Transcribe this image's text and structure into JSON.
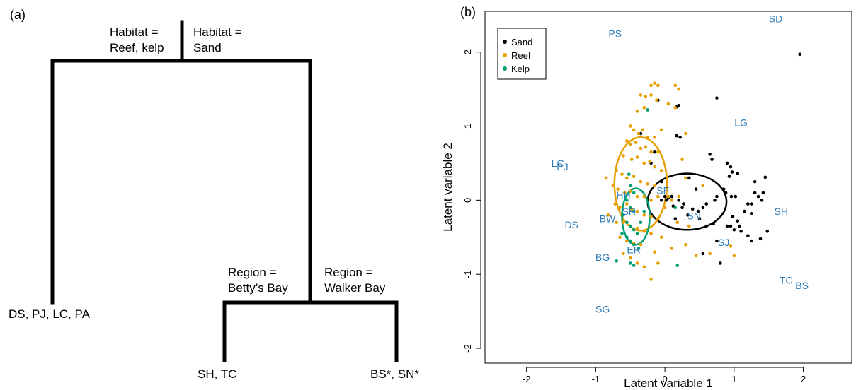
{
  "panel_a": {
    "label": "(a)",
    "split_habitat_left": [
      "Habitat =",
      "Reef, kelp"
    ],
    "split_habitat_right": [
      "Habitat =",
      "Sand"
    ],
    "split_region_left": [
      "Region =",
      "Betty’s Bay"
    ],
    "split_region_right": [
      "Region =",
      "Walker Bay"
    ],
    "leaf_far_left": "DS, PJ, LC, PA",
    "leaf_bettys": "SH, TC",
    "leaf_walker": "BS*, SN*"
  },
  "panel_b": {
    "label": "(b)",
    "colors": {
      "Sand": "#000000",
      "Reef": "#e69f00",
      "Kelp": "#009e73",
      "site_label": "#2b7bba"
    },
    "chart_data": {
      "type": "scatter",
      "xlabel": "Latent variable 1",
      "ylabel": "Latent variable 2",
      "xlim": [
        -2.6,
        2.7
      ],
      "ylim": [
        -2.2,
        2.55
      ],
      "xticks": [
        -2,
        -1,
        0,
        1,
        2
      ],
      "yticks": [
        -2,
        -1,
        0,
        1,
        2
      ],
      "xtick_labels": [
        "-2",
        "-1",
        "0",
        "1",
        "2"
      ],
      "ytick_labels": [
        "-2",
        "-1",
        "0",
        "1",
        "2"
      ],
      "grid": false,
      "legend": {
        "placement": "top-left",
        "entries": [
          "Sand",
          "Reef",
          "Kelp"
        ]
      },
      "site_labels": [
        {
          "text": "SD",
          "x": 1.6,
          "y": 2.45
        },
        {
          "text": "PS",
          "x": -0.72,
          "y": 2.25
        },
        {
          "text": "LG",
          "x": 1.1,
          "y": 1.05
        },
        {
          "text": "LC",
          "x": -1.55,
          "y": 0.5
        },
        {
          "text": "PJ",
          "x": -1.48,
          "y": 0.45
        },
        {
          "text": "HH",
          "x": -0.6,
          "y": 0.07
        },
        {
          "text": "SF",
          "x": -0.03,
          "y": 0.13
        },
        {
          "text": "SR",
          "x": -0.52,
          "y": -0.15
        },
        {
          "text": "SN",
          "x": 0.42,
          "y": -0.21
        },
        {
          "text": "SH",
          "x": 1.68,
          "y": -0.15
        },
        {
          "text": "BW",
          "x": -0.83,
          "y": -0.25
        },
        {
          "text": "DS",
          "x": -1.35,
          "y": -0.33
        },
        {
          "text": "SJ",
          "x": 0.85,
          "y": -0.57
        },
        {
          "text": "ER",
          "x": -0.45,
          "y": -0.67
        },
        {
          "text": "BG",
          "x": -0.9,
          "y": -0.77
        },
        {
          "text": "TC",
          "x": 1.75,
          "y": -1.08
        },
        {
          "text": "BS",
          "x": 1.98,
          "y": -1.15
        },
        {
          "text": "SG",
          "x": -0.9,
          "y": -1.47
        }
      ],
      "ellipses": [
        {
          "series": "Sand",
          "cx": 0.32,
          "cy": -0.02,
          "rx": 0.57,
          "ry": 0.38
        },
        {
          "series": "Reef",
          "cx": -0.35,
          "cy": 0.22,
          "rx": 0.38,
          "ry": 0.63
        },
        {
          "series": "Kelp",
          "cx": -0.42,
          "cy": -0.22,
          "rx": 0.2,
          "ry": 0.38
        }
      ],
      "series": [
        {
          "name": "Sand",
          "points": [
            [
              1.95,
              1.97
            ],
            [
              0.2,
              1.28
            ],
            [
              0.17,
              1.26
            ],
            [
              0.75,
              1.38
            ],
            [
              -0.1,
              1.35
            ],
            [
              0.22,
              0.85
            ],
            [
              0.17,
              0.87
            ],
            [
              0.65,
              0.62
            ],
            [
              0.68,
              0.55
            ],
            [
              0.9,
              0.5
            ],
            [
              0.95,
              0.45
            ],
            [
              0.93,
              0.32
            ],
            [
              0.97,
              0.38
            ],
            [
              1.05,
              0.36
            ],
            [
              1.45,
              0.31
            ],
            [
              1.3,
              0.1
            ],
            [
              1.35,
              0.05
            ],
            [
              1.4,
              0.0
            ],
            [
              1.25,
              -0.05
            ],
            [
              1.2,
              -0.05
            ],
            [
              1.48,
              -0.42
            ],
            [
              1.38,
              -0.52
            ],
            [
              1.25,
              -0.55
            ],
            [
              1.2,
              -0.48
            ],
            [
              1.1,
              -0.42
            ],
            [
              1.08,
              -0.35
            ],
            [
              1.0,
              -0.4
            ],
            [
              0.95,
              -0.35
            ],
            [
              0.9,
              -0.35
            ],
            [
              1.05,
              -0.28
            ],
            [
              0.98,
              -0.22
            ],
            [
              1.02,
              0.05
            ],
            [
              0.96,
              0.05
            ],
            [
              0.88,
              0.1
            ],
            [
              0.85,
              0.15
            ],
            [
              0.75,
              0.05
            ],
            [
              0.72,
              0.0
            ],
            [
              0.6,
              -0.05
            ],
            [
              0.55,
              -0.1
            ],
            [
              0.48,
              -0.15
            ],
            [
              0.4,
              -0.12
            ],
            [
              0.33,
              -0.2
            ],
            [
              0.27,
              -0.05
            ],
            [
              0.2,
              0.0
            ],
            [
              0.1,
              0.05
            ],
            [
              0.05,
              0.03
            ],
            [
              0.0,
              0.05
            ],
            [
              0.02,
              0.0
            ],
            [
              -0.05,
              0.0
            ],
            [
              0.12,
              -0.08
            ],
            [
              0.35,
              0.3
            ],
            [
              0.45,
              0.15
            ],
            [
              0.5,
              -0.25
            ],
            [
              0.6,
              -0.35
            ],
            [
              0.7,
              -0.32
            ],
            [
              0.75,
              -0.55
            ],
            [
              0.55,
              -0.72
            ],
            [
              0.8,
              -0.85
            ],
            [
              1.15,
              -0.15
            ],
            [
              1.25,
              -0.18
            ],
            [
              1.3,
              0.25
            ],
            [
              1.42,
              0.1
            ],
            [
              -0.2,
              0.5
            ],
            [
              -0.15,
              0.65
            ],
            [
              -0.35,
              0.9
            ],
            [
              -0.05,
              0.25
            ],
            [
              0.15,
              -0.25
            ],
            [
              0.25,
              -0.1
            ]
          ]
        },
        {
          "name": "Reef",
          "points": [
            [
              -0.2,
              1.55
            ],
            [
              -0.15,
              1.58
            ],
            [
              -0.1,
              1.55
            ],
            [
              0.15,
              1.55
            ],
            [
              0.2,
              1.5
            ],
            [
              -0.35,
              1.42
            ],
            [
              -0.28,
              1.4
            ],
            [
              -0.2,
              1.42
            ],
            [
              -0.12,
              1.35
            ],
            [
              0.05,
              1.3
            ],
            [
              0.15,
              1.25
            ],
            [
              -0.4,
              1.2
            ],
            [
              -0.3,
              1.25
            ],
            [
              -0.25,
              1.22
            ],
            [
              -0.5,
              1.0
            ],
            [
              -0.45,
              0.95
            ],
            [
              -0.38,
              0.9
            ],
            [
              -0.32,
              0.95
            ],
            [
              -0.25,
              0.85
            ],
            [
              -0.15,
              0.85
            ],
            [
              -0.05,
              0.95
            ],
            [
              0.3,
              0.9
            ],
            [
              -0.55,
              0.8
            ],
            [
              -0.5,
              0.75
            ],
            [
              -0.42,
              0.78
            ],
            [
              -0.35,
              0.7
            ],
            [
              -0.28,
              0.72
            ],
            [
              -0.2,
              0.65
            ],
            [
              -0.1,
              0.65
            ],
            [
              -0.6,
              0.6
            ],
            [
              -0.48,
              0.55
            ],
            [
              -0.4,
              0.58
            ],
            [
              -0.3,
              0.5
            ],
            [
              -0.22,
              0.52
            ],
            [
              -0.15,
              0.45
            ],
            [
              -0.05,
              0.4
            ],
            [
              -0.7,
              0.4
            ],
            [
              -0.62,
              0.35
            ],
            [
              -0.55,
              0.3
            ],
            [
              -0.45,
              0.32
            ],
            [
              -0.35,
              0.25
            ],
            [
              -0.25,
              0.22
            ],
            [
              -0.15,
              0.2
            ],
            [
              -0.75,
              0.2
            ],
            [
              -0.68,
              0.15
            ],
            [
              -0.58,
              0.1
            ],
            [
              -0.5,
              0.12
            ],
            [
              -0.4,
              0.05
            ],
            [
              -0.3,
              0.05
            ],
            [
              -0.2,
              0.0
            ],
            [
              -0.1,
              0.05
            ],
            [
              0.05,
              0.05
            ],
            [
              0.1,
              0.0
            ],
            [
              -0.72,
              -0.05
            ],
            [
              -0.65,
              -0.1
            ],
            [
              -0.55,
              -0.05
            ],
            [
              -0.48,
              -0.12
            ],
            [
              -0.4,
              -0.15
            ],
            [
              -0.3,
              -0.2
            ],
            [
              -0.2,
              -0.22
            ],
            [
              -0.1,
              -0.25
            ],
            [
              -0.7,
              -0.3
            ],
            [
              -0.6,
              -0.3
            ],
            [
              -0.5,
              -0.35
            ],
            [
              -0.4,
              -0.38
            ],
            [
              -0.3,
              -0.42
            ],
            [
              -0.2,
              -0.45
            ],
            [
              -0.65,
              -0.5
            ],
            [
              -0.55,
              -0.55
            ],
            [
              -0.45,
              -0.58
            ],
            [
              -0.35,
              -0.6
            ],
            [
              -0.6,
              -0.72
            ],
            [
              -0.5,
              -0.78
            ],
            [
              -0.4,
              -0.85
            ],
            [
              -0.3,
              -0.9
            ],
            [
              -0.2,
              -1.07
            ],
            [
              -0.1,
              -0.85
            ],
            [
              0.25,
              0.55
            ],
            [
              0.3,
              0.3
            ],
            [
              0.35,
              -0.35
            ],
            [
              0.3,
              -0.6
            ],
            [
              0.45,
              -0.75
            ],
            [
              0.65,
              -0.72
            ],
            [
              1.0,
              -0.75
            ],
            [
              0.95,
              -0.62
            ],
            [
              0.18,
              -0.3
            ],
            [
              0.0,
              -0.1
            ],
            [
              -0.85,
              0.3
            ],
            [
              -0.82,
              -0.2
            ],
            [
              -0.05,
              -0.5
            ],
            [
              0.1,
              -0.65
            ],
            [
              -0.15,
              -0.7
            ],
            [
              0.55,
              0.2
            ],
            [
              0.2,
              0.05
            ]
          ]
        },
        {
          "name": "Kelp",
          "points": [
            [
              -0.25,
              1.22
            ],
            [
              -0.52,
              0.35
            ],
            [
              -0.5,
              0.2
            ],
            [
              -0.45,
              0.1
            ],
            [
              -0.55,
              0.0
            ],
            [
              -0.5,
              -0.1
            ],
            [
              -0.45,
              -0.15
            ],
            [
              -0.6,
              -0.2
            ],
            [
              -0.55,
              -0.3
            ],
            [
              -0.5,
              -0.35
            ],
            [
              -0.45,
              -0.4
            ],
            [
              -0.4,
              -0.45
            ],
            [
              -0.55,
              -0.5
            ],
            [
              -0.5,
              -0.55
            ],
            [
              -0.45,
              -0.6
            ],
            [
              -0.38,
              -0.65
            ],
            [
              -0.5,
              -0.85
            ],
            [
              -0.45,
              -0.88
            ],
            [
              -0.7,
              -0.82
            ],
            [
              -0.35,
              -0.3
            ],
            [
              -0.3,
              -0.15
            ],
            [
              0.18,
              -0.88
            ],
            [
              0.15,
              -0.1
            ],
            [
              -0.62,
              -0.45
            ]
          ]
        }
      ]
    }
  }
}
